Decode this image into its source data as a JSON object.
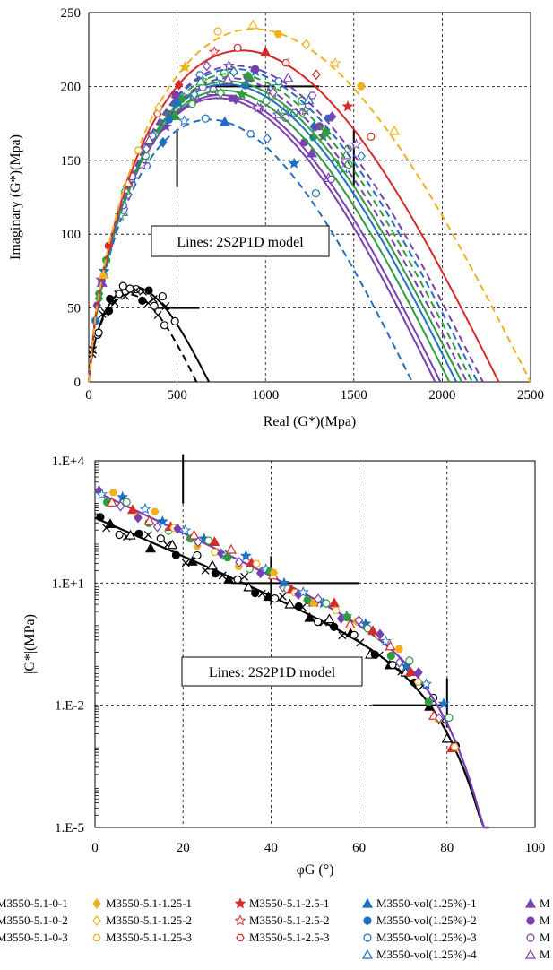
{
  "chart_data": [
    {
      "type": "line",
      "xlabel": "Real (G*)(Mpa)",
      "ylabel": "Imaginary  (G*)(Mpa)",
      "xlim": [
        0,
        2500
      ],
      "ylim": [
        0,
        250
      ],
      "xticks": [
        "0",
        "500",
        "1000",
        "1500",
        "2000",
        "2500"
      ],
      "yticks": [
        "0",
        "50",
        "100",
        "150",
        "200",
        "250"
      ],
      "grid": true,
      "annotation": "Lines:  2S2P1D model",
      "model_curves": [
        {
          "color": "#000000",
          "dash": false,
          "peak": 62,
          "end": 680
        },
        {
          "color": "#000000",
          "dash": true,
          "peak": 57,
          "end": 610
        },
        {
          "color": "#1f6fc4",
          "dash": true,
          "peak": 171,
          "end": 1830
        },
        {
          "color": "#7a3fb0",
          "dash": false,
          "peak": 185,
          "end": 1960
        },
        {
          "color": "#7a3fb0",
          "dash": false,
          "peak": 187,
          "end": 1990
        },
        {
          "color": "#2e9d3f",
          "dash": false,
          "peak": 190,
          "end": 2040
        },
        {
          "color": "#1f6fc4",
          "dash": false,
          "peak": 194,
          "end": 2080
        },
        {
          "color": "#2e9d3f",
          "dash": false,
          "peak": 196,
          "end": 2110
        },
        {
          "color": "#7a3fb0",
          "dash": true,
          "peak": 198,
          "end": 2140
        },
        {
          "color": "#2e9d3f",
          "dash": true,
          "peak": 201,
          "end": 2170
        },
        {
          "color": "#1f6fc4",
          "dash": true,
          "peak": 204,
          "end": 2200
        },
        {
          "color": "#7a3fb0",
          "dash": true,
          "peak": 206,
          "end": 2230
        },
        {
          "color": "#d62a2a",
          "dash": false,
          "peak": 216,
          "end": 2320
        },
        {
          "color": "#f2b01e",
          "dash": true,
          "peak": 230,
          "end": 2500
        }
      ]
    },
    {
      "type": "line",
      "xlabel": "φG (°)",
      "ylabel": "|G*|(MPa)",
      "xlim": [
        0,
        100
      ],
      "ylim_log10": [
        -5,
        4
      ],
      "xticks": [
        "0",
        "20",
        "40",
        "60",
        "80",
        "100"
      ],
      "yticks": [
        "1.E-5",
        "1.E-2",
        "1.E+1",
        "1.E+4"
      ],
      "grid": true,
      "annotation": "Lines:  2S2P1D model",
      "model_curves": [
        {
          "color": "#000000",
          "start_log": 2.6,
          "end_phase": 89.5
        },
        {
          "color": "#7a3fb0",
          "start_log": 3.25,
          "end_phase": 89.5
        }
      ]
    }
  ],
  "legend": {
    "columns": [
      [
        "M3550-5.1-0-1",
        "M3550-5.1-0-2",
        "M3550-5.1-0-3"
      ],
      [
        "M3550-5.1-1.25-1",
        "M3550-5.1-1.25-2",
        "M3550-5.1-1.25-3"
      ],
      [
        "M3550-5.1-2.5-1",
        "M3550-5.1-2.5-2",
        "M3550-5.1-2.5-3"
      ],
      [
        "M3550-vol(1.25%)-1",
        "M3550-vol(1.25%)-2",
        "M3550-vol(1.25%)-3",
        "M3550-vol(1.25%)-4"
      ],
      [
        "M",
        "M",
        "M",
        "M"
      ]
    ],
    "marker_colors": [
      "#000000",
      "#f2b01e",
      "#d62a2a",
      "#1f6fc4",
      "#7a3fb0"
    ]
  }
}
